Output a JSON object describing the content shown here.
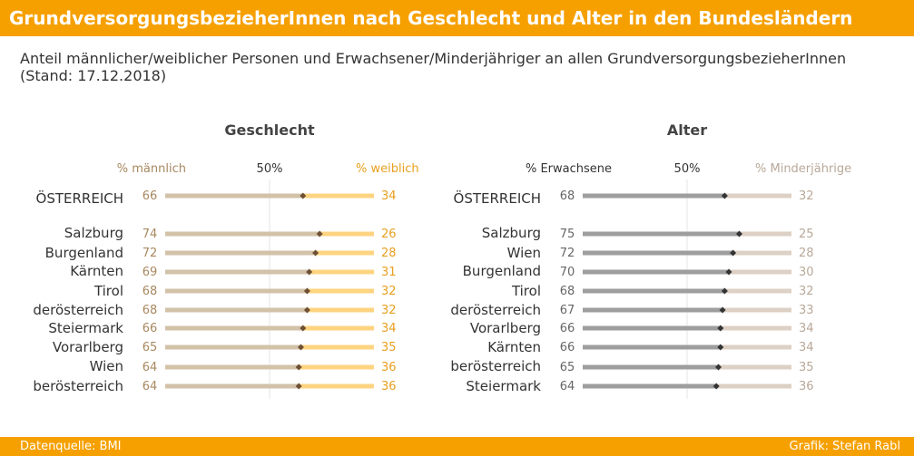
{
  "header": {
    "title": "GrundversorgungsbezieherInnen nach Geschlecht und Alter in den Bundesländern"
  },
  "subtitle": "Anteil männlicher/weiblicher Personen und Erwachsener/Minderjähriger an allen GrundversorgungsbezieherInnen (Stand: 17.12.2018)",
  "footer": {
    "source": "Datenquelle: BMI",
    "credit": "Grafik: Stefan Rabl"
  },
  "colors": {
    "orange": "#f6a000",
    "male_bar": "#d2c2a8",
    "female_bar": "#fed481",
    "male_text": "#a88860",
    "female_text": "#e8a020",
    "adult_bar": "#9e9e9e",
    "minor_bar": "#ddd0c4",
    "adult_text": "#666666",
    "minor_text": "#b8a898",
    "marker": "#6e5034"
  },
  "chart_data": [
    {
      "type": "bar",
      "stacked_percent": true,
      "title": "Geschlecht",
      "left_label": "% männlich",
      "mid_label": "50%",
      "right_label": "% weiblich",
      "xlim": [
        0,
        100
      ],
      "categories": [
        "ÖSTERREICH",
        "Salzburg",
        "Burgenland",
        "Kärnten",
        "Tirol",
        "derösterreich",
        "Steiermark",
        "Vorarlberg",
        "Wien",
        "berösterreich"
      ],
      "series": [
        {
          "name": "% männlich",
          "values": [
            66,
            74,
            72,
            69,
            68,
            68,
            66,
            65,
            64,
            64
          ]
        },
        {
          "name": "% weiblich",
          "values": [
            34,
            26,
            28,
            31,
            32,
            32,
            34,
            35,
            36,
            36
          ]
        }
      ]
    },
    {
      "type": "bar",
      "stacked_percent": true,
      "title": "Alter",
      "left_label": "% Erwachsene",
      "mid_label": "50%",
      "right_label": "% Minderjährige",
      "xlim": [
        0,
        100
      ],
      "categories": [
        "ÖSTERREICH",
        "Salzburg",
        "Wien",
        "Burgenland",
        "Tirol",
        "derösterreich",
        "Vorarlberg",
        "Kärnten",
        "berösterreich",
        "Steiermark"
      ],
      "series": [
        {
          "name": "% Erwachsene",
          "values": [
            68,
            75,
            72,
            70,
            68,
            67,
            66,
            66,
            65,
            64
          ]
        },
        {
          "name": "% Minderjährige",
          "values": [
            32,
            25,
            28,
            30,
            32,
            33,
            34,
            34,
            35,
            36
          ]
        }
      ]
    }
  ]
}
